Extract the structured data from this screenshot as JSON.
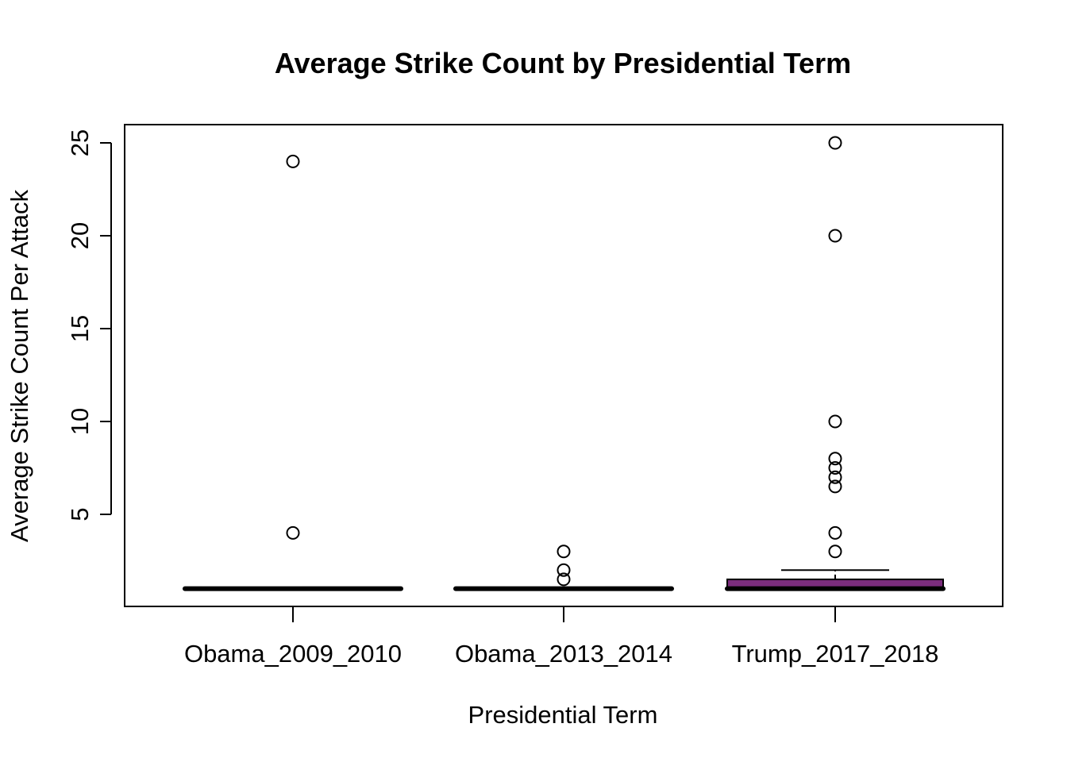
{
  "chart_data": {
    "type": "boxplot",
    "title": "Average Strike Count by Presidential Term",
    "xlabel": "Presidential Term",
    "ylabel": "Average Strike Count Per Attack",
    "ylim": [
      0,
      26
    ],
    "yticks": [
      5,
      10,
      15,
      20,
      25
    ],
    "categories": [
      "Obama_2009_2010",
      "Obama_2013_2014",
      "Trump_2017_2018"
    ],
    "boxes": [
      {
        "category": "Obama_2009_2010",
        "min": 1,
        "q1": 1,
        "median": 1,
        "q3": 1,
        "max": 1,
        "outliers": [
          24,
          4
        ],
        "fill": "#ffffff"
      },
      {
        "category": "Obama_2013_2014",
        "min": 1,
        "q1": 1,
        "median": 1,
        "q3": 1,
        "max": 1,
        "outliers": [
          3,
          2,
          1.5
        ],
        "fill": "#ffffff"
      },
      {
        "category": "Trump_2017_2018",
        "min": 1,
        "q1": 1,
        "median": 1,
        "q3": 1.5,
        "max": 2,
        "outliers": [
          25,
          20,
          10,
          8,
          7.5,
          7,
          6.5,
          4,
          3
        ],
        "fill": "#7b2d7d"
      }
    ],
    "grid": false,
    "legend": "none"
  }
}
